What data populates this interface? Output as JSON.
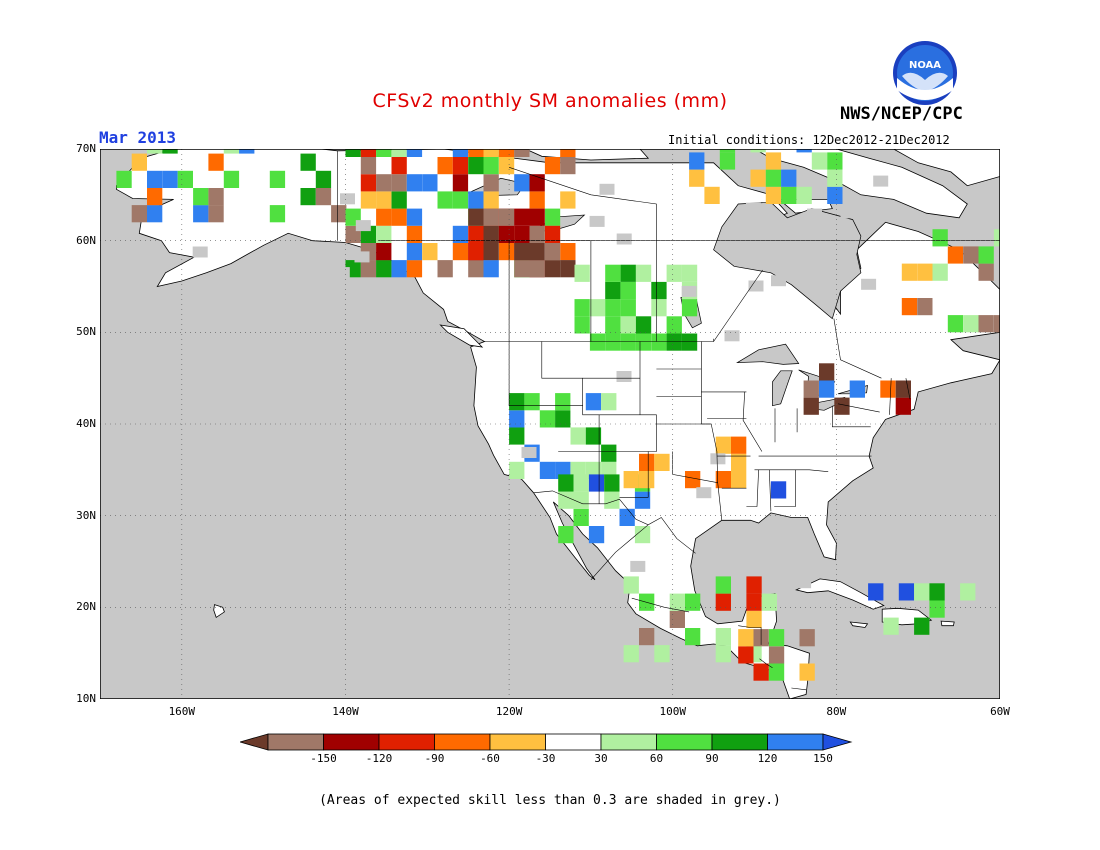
{
  "header": {
    "title": "CFSv2 monthly SM anomalies (mm)",
    "org": "NWS/NCEP/CPC",
    "month": "Mar 2013",
    "initial_conditions": "Initial conditions: 12Dec2012-21Dec2012",
    "logo_text": "NOAA"
  },
  "map": {
    "projection": "lat-lon",
    "lon_range": [
      -170,
      -60
    ],
    "lat_range": [
      10,
      70
    ],
    "ocean_color": "#c8c8c8",
    "land_color": "#ffffff",
    "lat_labels": [
      "70N",
      "60N",
      "50N",
      "40N",
      "30N",
      "20N",
      "10N"
    ],
    "lat_values": [
      70,
      60,
      50,
      40,
      30,
      20,
      10
    ],
    "lon_labels": [
      "160W",
      "140W",
      "120W",
      "100W",
      "80W",
      "60W"
    ],
    "lon_values": [
      -160,
      -140,
      -120,
      -100,
      -80,
      -60
    ],
    "grid": true
  },
  "colorbar": {
    "tick_labels": [
      "-150",
      "-120",
      "-90",
      "-60",
      "-30",
      "30",
      "60",
      "90",
      "120",
      "150"
    ],
    "colors": [
      "#6b3a2a",
      "#a07868",
      "#a00000",
      "#e02000",
      "#ff6a00",
      "#ffc040",
      "#ffffff",
      "#b0f0a0",
      "#50e040",
      "#10a010",
      "#3080f0",
      "#2050e0"
    ]
  },
  "note": "(Areas of expected skill less than 0.3 are shaded in grey.)"
}
